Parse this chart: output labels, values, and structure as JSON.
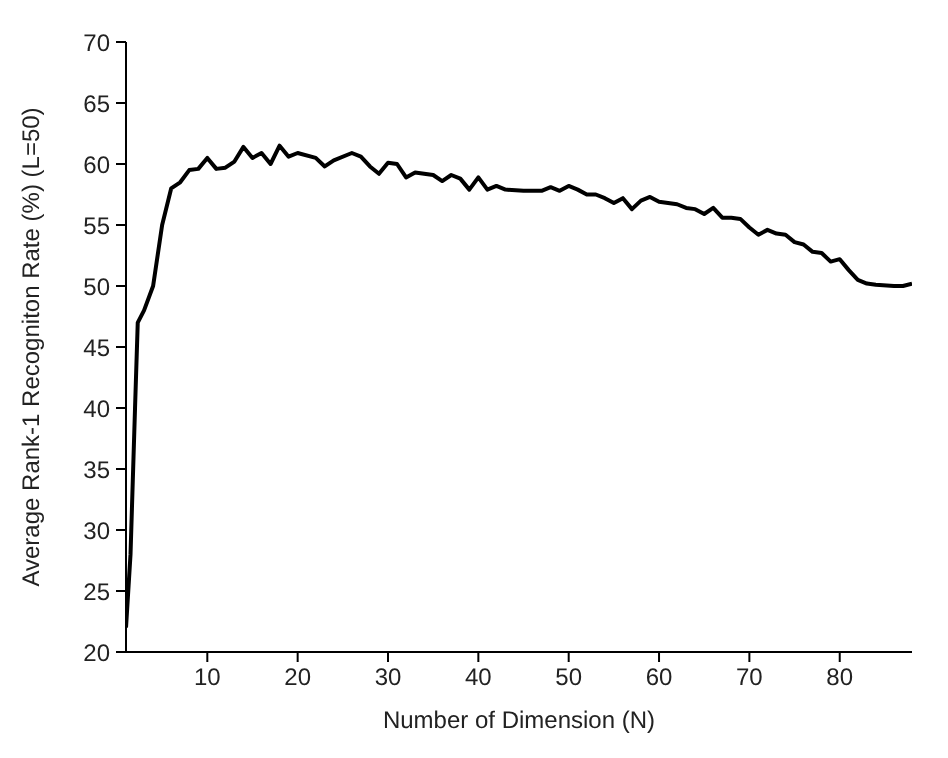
{
  "chart_data": {
    "type": "line",
    "xlabel": "Number of Dimension (N)",
    "ylabel": "Average Rank-1 Recogniton Rate (%)    (L=50)",
    "xlim": [
      1,
      88
    ],
    "ylim": [
      20,
      70
    ],
    "xticks": [
      10,
      20,
      30,
      40,
      50,
      60,
      70,
      80
    ],
    "yticks": [
      20,
      25,
      30,
      35,
      40,
      45,
      50,
      55,
      60,
      65,
      70
    ],
    "grid": false,
    "legend": false,
    "marker": "none",
    "line_style": "solid",
    "series": [
      {
        "color": "#000000",
        "x": [
          1,
          1.5,
          2,
          2.3,
          3,
          4,
          5,
          6,
          7,
          8,
          9,
          10,
          11,
          12,
          13,
          14,
          15,
          16,
          17,
          18,
          19,
          20,
          22,
          23,
          24,
          26,
          27,
          28,
          29,
          30,
          31,
          32,
          33,
          35,
          36,
          37,
          38,
          39,
          40,
          41,
          42,
          43,
          45,
          47,
          48,
          49,
          50,
          51,
          52,
          53,
          54,
          55,
          56,
          57,
          58,
          59,
          60,
          62,
          63,
          64,
          65,
          66,
          67,
          68,
          69,
          70,
          71,
          72,
          73,
          74,
          75,
          76,
          77,
          78,
          79,
          80,
          81,
          82,
          83,
          84,
          86,
          87,
          88
        ],
        "values": [
          22,
          28,
          40,
          47,
          48,
          50,
          55,
          58,
          58.5,
          59.5,
          59.6,
          60.5,
          59.6,
          59.7,
          60.2,
          61.4,
          60.5,
          60.9,
          60,
          61.5,
          60.6,
          60.9,
          60.5,
          59.8,
          60.3,
          60.9,
          60.6,
          59.8,
          59.2,
          60.1,
          60,
          58.9,
          59.3,
          59.1,
          58.6,
          59.1,
          58.8,
          57.9,
          58.9,
          57.9,
          58.2,
          57.9,
          57.8,
          57.8,
          58.1,
          57.8,
          58.2,
          57.9,
          57.5,
          57.5,
          57.2,
          56.8,
          57.2,
          56.3,
          57,
          57.3,
          56.9,
          56.7,
          56.4,
          56.3,
          55.9,
          56.4,
          55.6,
          55.6,
          55.5,
          54.8,
          54.2,
          54.6,
          54.3,
          54.2,
          53.6,
          53.4,
          52.8,
          52.7,
          52,
          52.2,
          51.3,
          50.5,
          50.2,
          50.1,
          50,
          50,
          50.2
        ]
      }
    ]
  }
}
